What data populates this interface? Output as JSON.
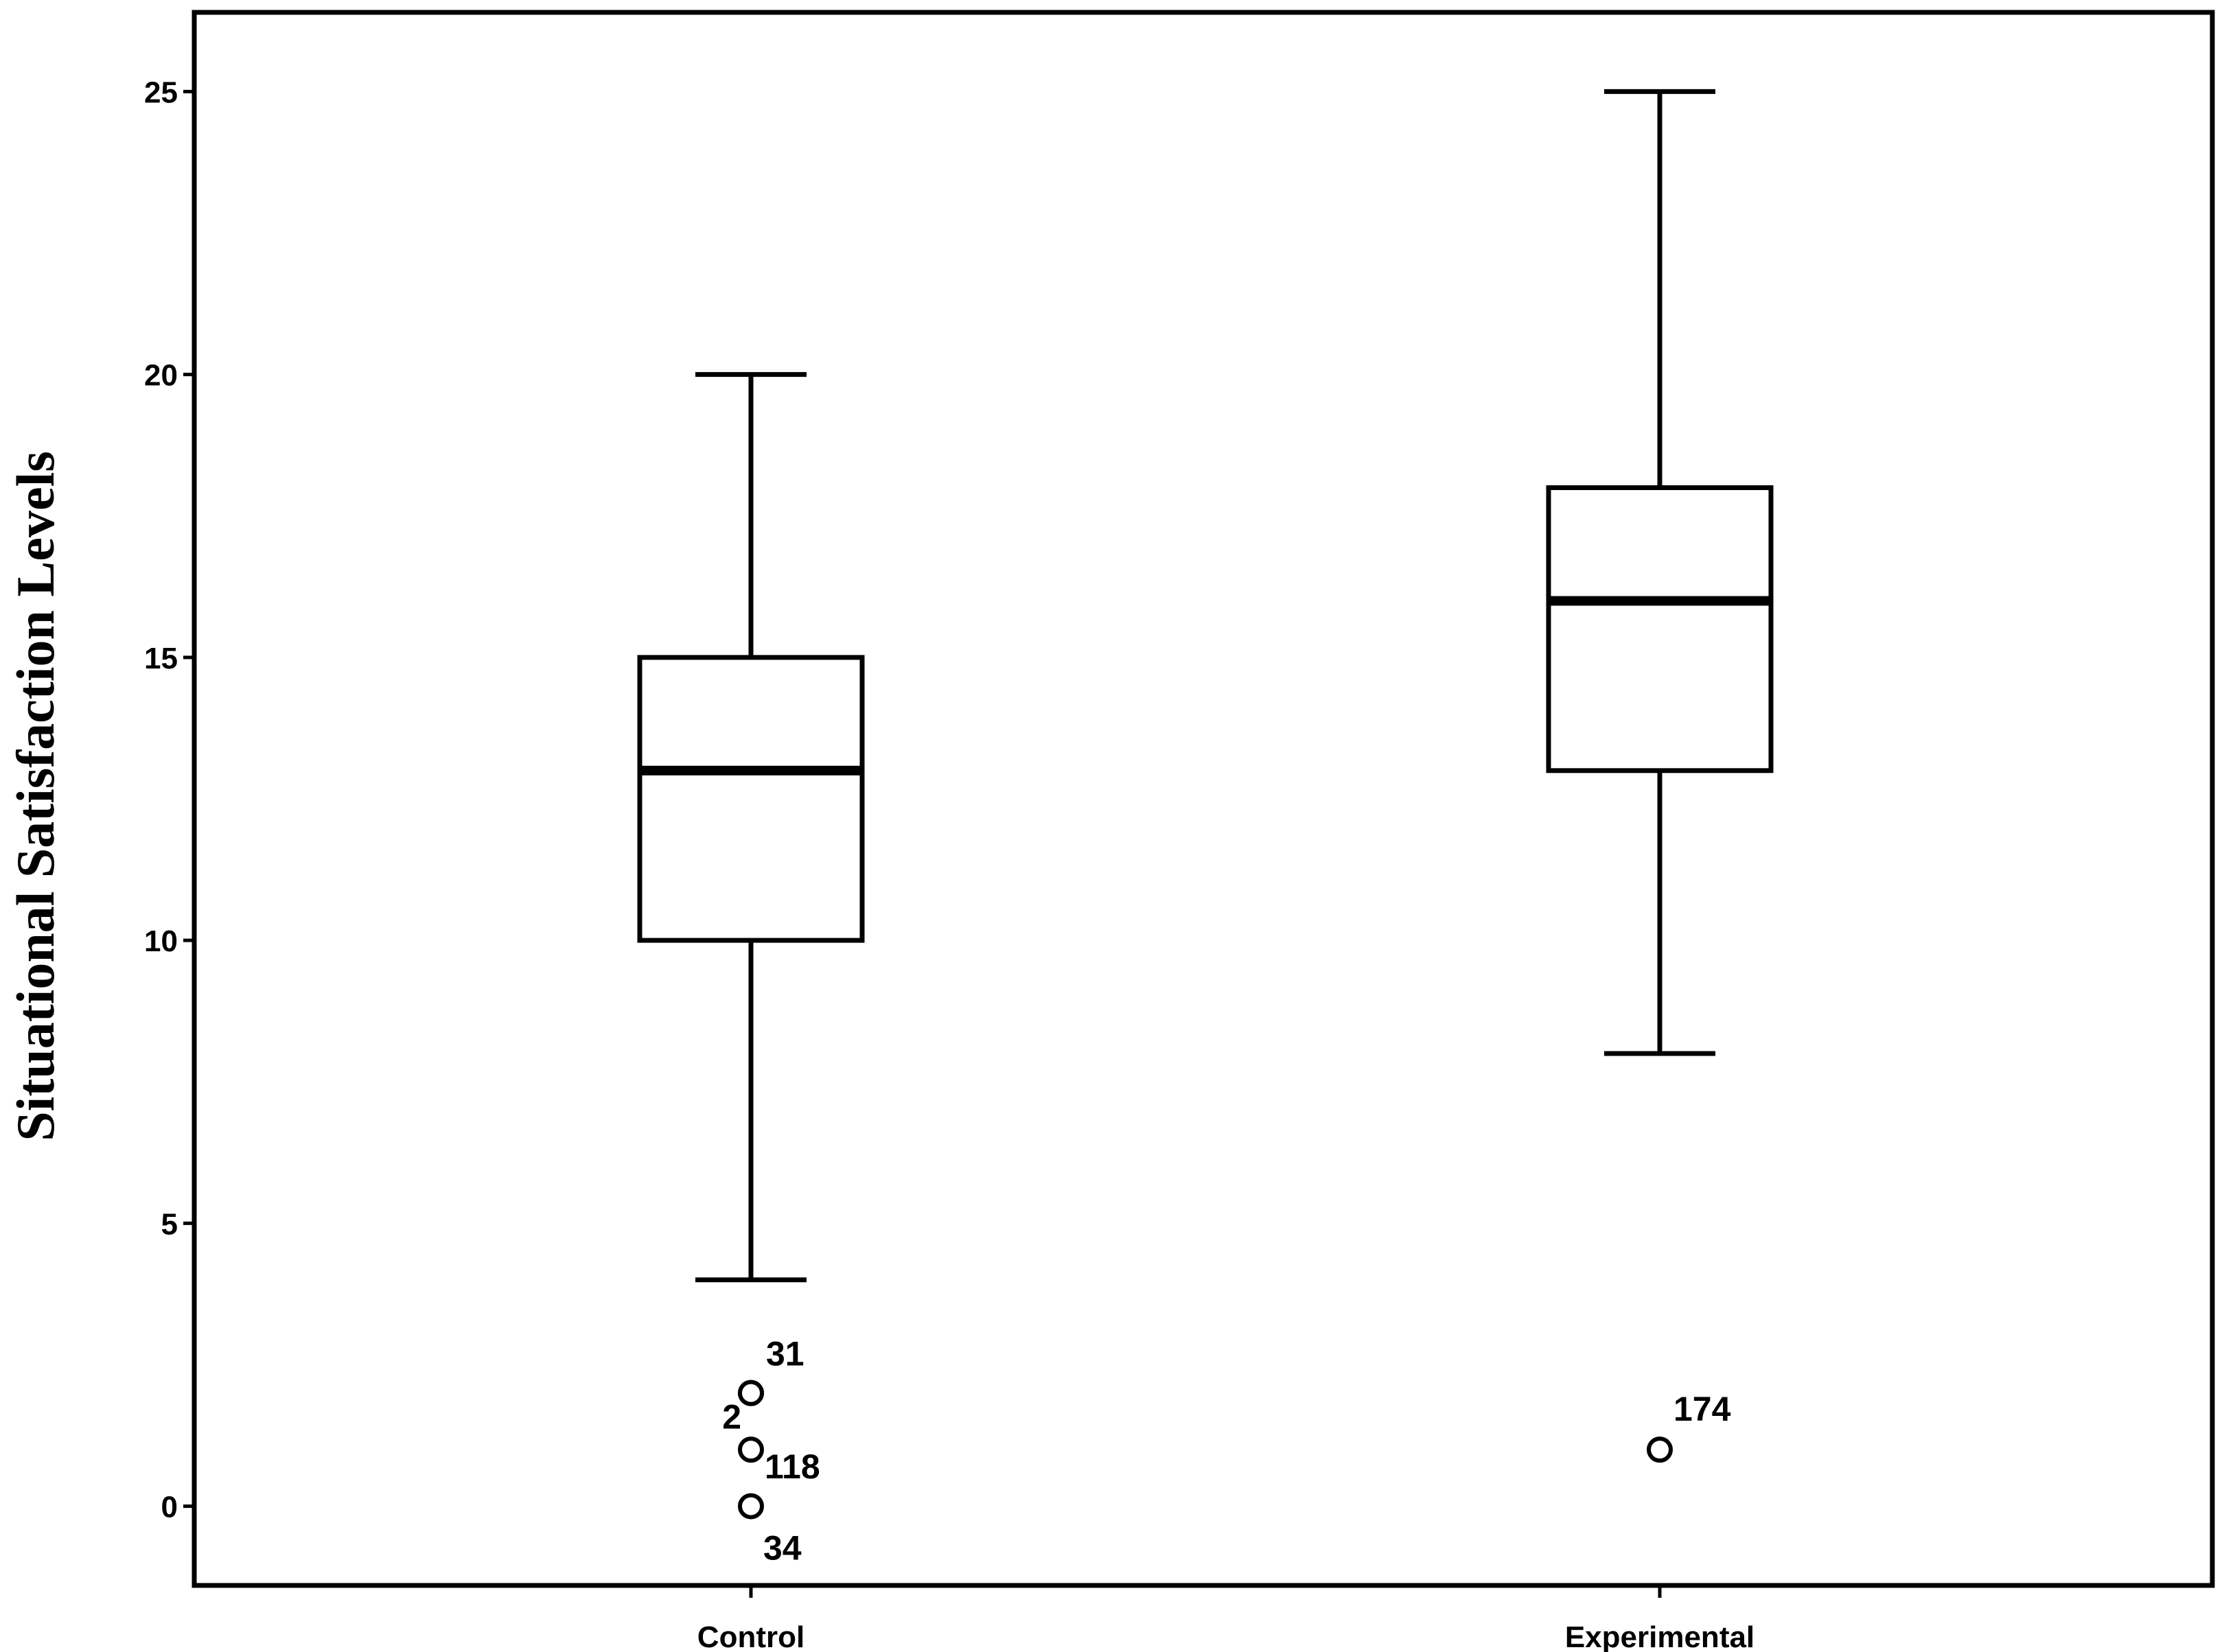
{
  "chart_data": {
    "type": "box",
    "title": "",
    "xlabel": "",
    "ylabel": "Situational Satisfaction Levels",
    "ylim": [
      -1.4,
      26.4
    ],
    "yticks": [
      0,
      5,
      10,
      15,
      20,
      25
    ],
    "grid": false,
    "categories": [
      "Control",
      "Experimental"
    ],
    "boxes": [
      {
        "category": "Control",
        "whisker_low": 4,
        "q1": 10,
        "median": 13,
        "q3": 15,
        "whisker_high": 20,
        "outliers": [
          {
            "value": 2,
            "label": "31"
          },
          {
            "value": 2,
            "label": "2"
          },
          {
            "value": 1,
            "label": "118"
          },
          {
            "value": 0,
            "label": "34"
          }
        ]
      },
      {
        "category": "Experimental",
        "whisker_low": 8,
        "q1": 13,
        "median": 16,
        "q3": 18,
        "whisker_high": 25,
        "outliers": [
          {
            "value": 1,
            "label": "174"
          }
        ]
      }
    ]
  }
}
